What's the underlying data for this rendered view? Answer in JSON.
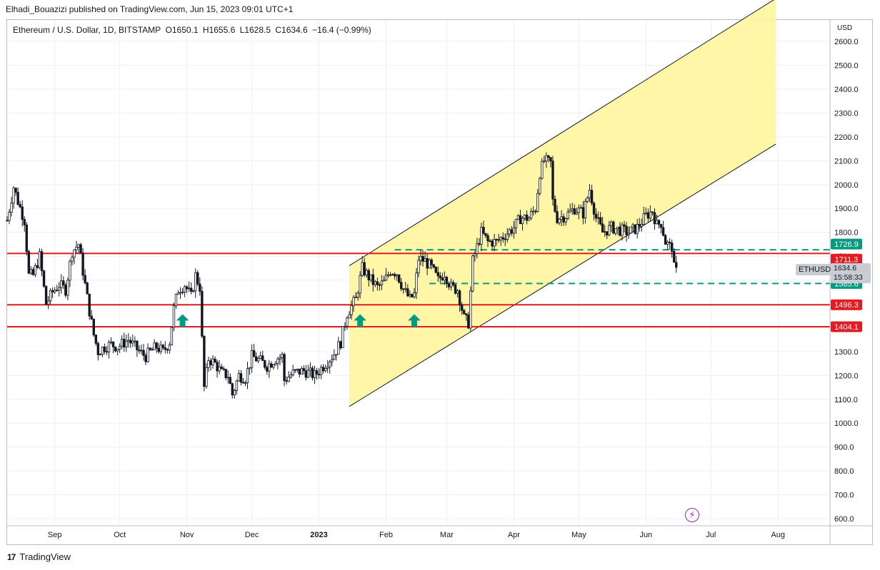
{
  "header": {
    "publisher": "Elhadi_Bouazizi published on TradingView.com, Jun 15, 2023 09:01 UTC+1"
  },
  "symbol": {
    "name": "Ethereum / U.S. Dollar, 1D, BITSTAMP",
    "open": "O1650.1",
    "high": "H1655.6",
    "low": "L1628.5",
    "close": "C1634.6",
    "change": "−16.4 (−0.99%)"
  },
  "price_axis": {
    "currency": "USD",
    "ticks": [
      "2600.0",
      "2500.0",
      "2400.0",
      "2300.0",
      "2200.0",
      "2100.0",
      "2000.0",
      "1900.0",
      "1800.0",
      "1700.0",
      "1600.0",
      "1500.0",
      "1400.0",
      "1300.0",
      "1200.0",
      "1100.0",
      "1000.0",
      "900.0",
      "800.0",
      "700.0",
      "600.0"
    ]
  },
  "time_axis": {
    "labels": [
      "Sep",
      "Oct",
      "Nov",
      "Dec",
      "2023",
      "Feb",
      "Mar",
      "Apr",
      "May",
      "Jun",
      "Jul",
      "Aug"
    ]
  },
  "price_tags": {
    "level_1726": "1726.9",
    "level_1711": "1711.3",
    "level_1585": "1585.6",
    "level_1496": "1496.3",
    "level_1404": "1404.1",
    "symbol_tag": "ETHUSD",
    "last_price": "1634.6",
    "countdown": "15:58:33"
  },
  "footer": {
    "brand": "TradingView",
    "logo": "17"
  },
  "colors": {
    "up": "#26a69a",
    "down": "#131722",
    "resistance": "#e31b23",
    "support_dash": "#089981",
    "channel_fill": "#fff59d",
    "tag_green": "#089981",
    "tag_red": "#e31b23"
  },
  "chart_data": {
    "type": "candlestick",
    "title": "Ethereum / U.S. Dollar, 1D, BITSTAMP",
    "ylabel": "USD",
    "ylim": [
      570,
      2690
    ],
    "x_range": [
      "2022-08-10",
      "2023-08-25"
    ],
    "ohlc_last": {
      "open": 1650.1,
      "high": 1655.6,
      "low": 1628.5,
      "close": 1634.6,
      "change": -16.4,
      "change_pct": -0.99
    },
    "close_path": [
      [
        "2022-08-10",
        1850
      ],
      [
        "2022-08-13",
        1990
      ],
      [
        "2022-08-15",
        1930
      ],
      [
        "2022-08-18",
        1850
      ],
      [
        "2022-08-20",
        1620
      ],
      [
        "2022-08-22",
        1620
      ],
      [
        "2022-08-25",
        1700
      ],
      [
        "2022-08-28",
        1500
      ],
      [
        "2022-08-31",
        1550
      ],
      [
        "2022-09-03",
        1580
      ],
      [
        "2022-09-06",
        1560
      ],
      [
        "2022-09-09",
        1720
      ],
      [
        "2022-09-12",
        1750
      ],
      [
        "2022-09-15",
        1580
      ],
      [
        "2022-09-17",
        1470
      ],
      [
        "2022-09-19",
        1370
      ],
      [
        "2022-09-21",
        1300
      ],
      [
        "2022-09-24",
        1320
      ],
      [
        "2022-09-27",
        1330
      ],
      [
        "2022-09-30",
        1320
      ],
      [
        "2022-10-05",
        1350
      ],
      [
        "2022-10-10",
        1300
      ],
      [
        "2022-10-13",
        1280
      ],
      [
        "2022-10-15",
        1300
      ],
      [
        "2022-10-18",
        1320
      ],
      [
        "2022-10-21",
        1300
      ],
      [
        "2022-10-24",
        1340
      ],
      [
        "2022-10-26",
        1480
      ],
      [
        "2022-10-28",
        1560
      ],
      [
        "2022-10-31",
        1580
      ],
      [
        "2022-11-03",
        1530
      ],
      [
        "2022-11-05",
        1620
      ],
      [
        "2022-11-07",
        1570
      ],
      [
        "2022-11-08",
        1350
      ],
      [
        "2022-11-09",
        1150
      ],
      [
        "2022-11-11",
        1270
      ],
      [
        "2022-11-14",
        1250
      ],
      [
        "2022-11-17",
        1210
      ],
      [
        "2022-11-20",
        1200
      ],
      [
        "2022-11-22",
        1120
      ],
      [
        "2022-11-25",
        1200
      ],
      [
        "2022-11-28",
        1190
      ],
      [
        "2022-12-01",
        1280
      ],
      [
        "2022-12-05",
        1260
      ],
      [
        "2022-12-08",
        1240
      ],
      [
        "2022-12-12",
        1270
      ],
      [
        "2022-12-15",
        1280
      ],
      [
        "2022-12-16",
        1180
      ],
      [
        "2022-12-20",
        1210
      ],
      [
        "2022-12-25",
        1220
      ],
      [
        "2022-12-30",
        1200
      ],
      [
        "2023-01-04",
        1250
      ],
      [
        "2023-01-08",
        1290
      ],
      [
        "2023-01-11",
        1340
      ],
      [
        "2023-01-14",
        1460
      ],
      [
        "2023-01-18",
        1520
      ],
      [
        "2023-01-21",
        1650
      ],
      [
        "2023-01-25",
        1600
      ],
      [
        "2023-01-28",
        1570
      ],
      [
        "2023-01-31",
        1590
      ],
      [
        "2023-02-03",
        1640
      ],
      [
        "2023-02-06",
        1630
      ],
      [
        "2023-02-09",
        1560
      ],
      [
        "2023-02-12",
        1520
      ],
      [
        "2023-02-14",
        1540
      ],
      [
        "2023-02-16",
        1690
      ],
      [
        "2023-02-19",
        1680
      ],
      [
        "2023-02-22",
        1650
      ],
      [
        "2023-02-25",
        1600
      ],
      [
        "2023-02-28",
        1630
      ],
      [
        "2023-03-03",
        1570
      ],
      [
        "2023-03-06",
        1560
      ],
      [
        "2023-03-09",
        1440
      ],
      [
        "2023-03-11",
        1420
      ],
      [
        "2023-03-13",
        1680
      ],
      [
        "2023-03-17",
        1800
      ],
      [
        "2023-03-20",
        1760
      ],
      [
        "2023-03-24",
        1760
      ],
      [
        "2023-03-28",
        1790
      ],
      [
        "2023-04-01",
        1820
      ],
      [
        "2023-04-04",
        1860
      ],
      [
        "2023-04-08",
        1860
      ],
      [
        "2023-04-11",
        1900
      ],
      [
        "2023-04-13",
        2050
      ],
      [
        "2023-04-15",
        2100
      ],
      [
        "2023-04-18",
        2090
      ],
      [
        "2023-04-19",
        1930
      ],
      [
        "2023-04-21",
        1860
      ],
      [
        "2023-04-25",
        1870
      ],
      [
        "2023-04-29",
        1900
      ],
      [
        "2023-05-03",
        1880
      ],
      [
        "2023-05-06",
        1980
      ],
      [
        "2023-05-09",
        1860
      ],
      [
        "2023-05-12",
        1800
      ],
      [
        "2023-05-16",
        1820
      ],
      [
        "2023-05-20",
        1810
      ],
      [
        "2023-05-24",
        1800
      ],
      [
        "2023-05-28",
        1820
      ],
      [
        "2023-06-01",
        1870
      ],
      [
        "2023-06-04",
        1890
      ],
      [
        "2023-06-06",
        1830
      ],
      [
        "2023-06-08",
        1840
      ],
      [
        "2023-06-10",
        1760
      ],
      [
        "2023-06-12",
        1740
      ],
      [
        "2023-06-13",
        1740
      ],
      [
        "2023-06-14",
        1650
      ],
      [
        "2023-06-15",
        1635
      ]
    ],
    "horizontal_levels": [
      {
        "price": 1711.3,
        "style": "solid",
        "color": "#e31b23"
      },
      {
        "price": 1496.3,
        "style": "solid",
        "color": "#e31b23"
      },
      {
        "price": 1404.1,
        "style": "solid",
        "color": "#e31b23"
      },
      {
        "price": 1726.9,
        "style": "dashed",
        "color": "#089981",
        "from": "2023-02-05"
      },
      {
        "price": 1585.6,
        "style": "dashed",
        "color": "#089981",
        "from": "2023-02-21"
      }
    ],
    "channel": {
      "lower_start": [
        "2023-01-15",
        1070
      ],
      "lower_end": [
        "2023-07-31",
        2170
      ],
      "upper_start": [
        "2023-01-15",
        1660
      ],
      "upper_end": [
        "2023-07-31",
        2780
      ]
    },
    "arrows_up": [
      {
        "date": "2022-10-30",
        "price": 1430
      },
      {
        "date": "2023-01-20",
        "price": 1430
      },
      {
        "date": "2023-02-14",
        "price": 1430
      }
    ]
  }
}
